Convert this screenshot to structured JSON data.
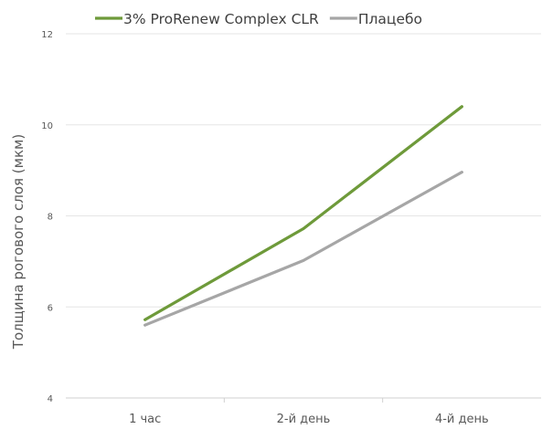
{
  "chart_data": {
    "type": "line",
    "title": "",
    "xlabel": "",
    "ylabel": "Толщина рогового слоя (мкм)",
    "categories": [
      "1 час",
      "2-й день",
      "4-й день"
    ],
    "ylim": [
      4,
      12
    ],
    "yticks": [
      4,
      6,
      8,
      10,
      12
    ],
    "grid": true,
    "legend_position": "top",
    "series": [
      {
        "name": "3% ProRenew Complex CLR",
        "color": "#6e9a3a",
        "values": [
          5.72,
          7.72,
          10.4
        ]
      },
      {
        "name": "Плацебо",
        "color": "#a6a6a6",
        "values": [
          5.6,
          7.02,
          8.96
        ]
      }
    ]
  }
}
